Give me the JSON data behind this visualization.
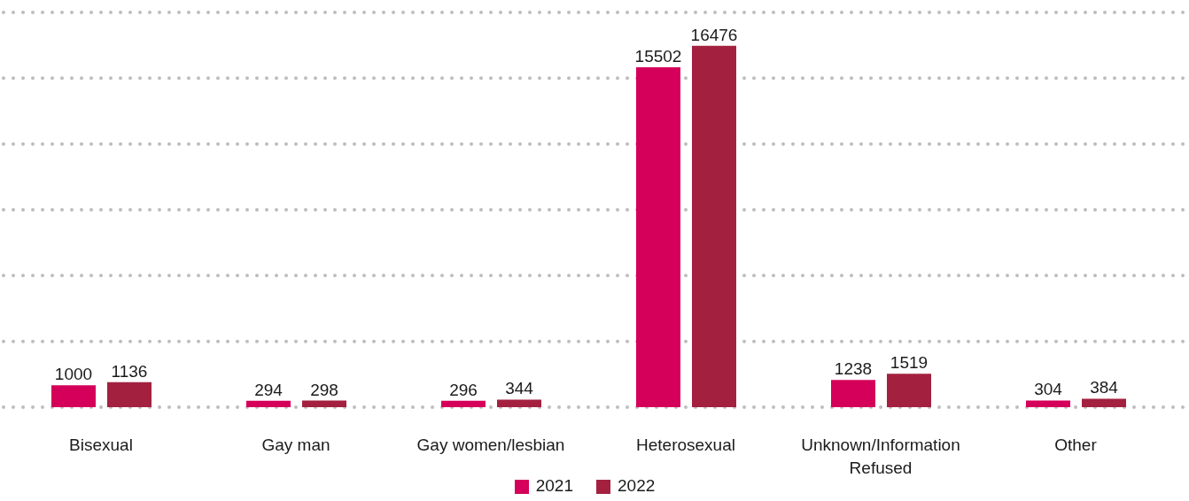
{
  "chart_data": {
    "type": "bar",
    "categories": [
      "Bisexual",
      "Gay man",
      "Gay women/lesbian",
      "Heterosexual",
      "Unknown/Information Refused",
      "Other"
    ],
    "series": [
      {
        "name": "2021",
        "color": "#d5005a",
        "values": [
          1000,
          294,
          296,
          15502,
          1238,
          304
        ]
      },
      {
        "name": "2022",
        "color": "#a3213f",
        "values": [
          1136,
          298,
          344,
          16476,
          1519,
          384
        ]
      }
    ],
    "data_labels": true,
    "grid": "y",
    "legend": "bottom",
    "tick_labels": "x"
  }
}
